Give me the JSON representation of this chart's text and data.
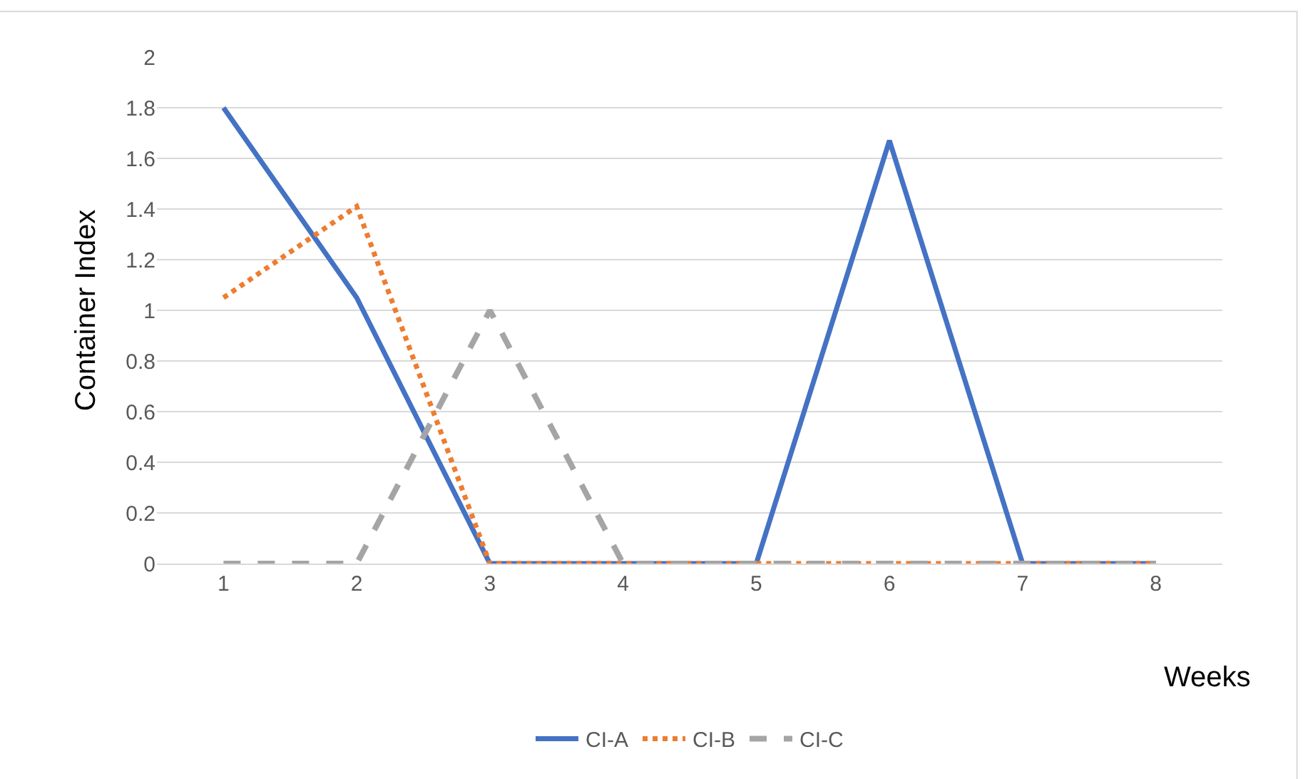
{
  "chart_data": {
    "type": "line",
    "xlabel": "Weeks",
    "ylabel": "Container Index",
    "categories": [
      "1",
      "2",
      "3",
      "4",
      "5",
      "6",
      "7",
      "8"
    ],
    "series": [
      {
        "name": "CI-A",
        "color": "#4472c4",
        "line_style": "solid",
        "values": [
          1.8,
          1.05,
          0,
          0,
          0,
          1.67,
          0,
          0
        ]
      },
      {
        "name": "CI-B",
        "color": "#ed7d31",
        "line_style": "dotted",
        "values": [
          1.05,
          1.41,
          0,
          0,
          0,
          0,
          0,
          0
        ]
      },
      {
        "name": "CI-C",
        "color": "#a5a5a5",
        "line_style": "dashed",
        "values": [
          0,
          0,
          1.0,
          0,
          0,
          0,
          0,
          0
        ]
      }
    ],
    "ylim": [
      0,
      2
    ],
    "yticks": [
      0,
      0.2,
      0.4,
      0.6,
      0.8,
      1,
      1.2,
      1.4,
      1.6,
      1.8,
      2
    ],
    "grid": "y",
    "legend": "bottom",
    "marker": "none"
  }
}
